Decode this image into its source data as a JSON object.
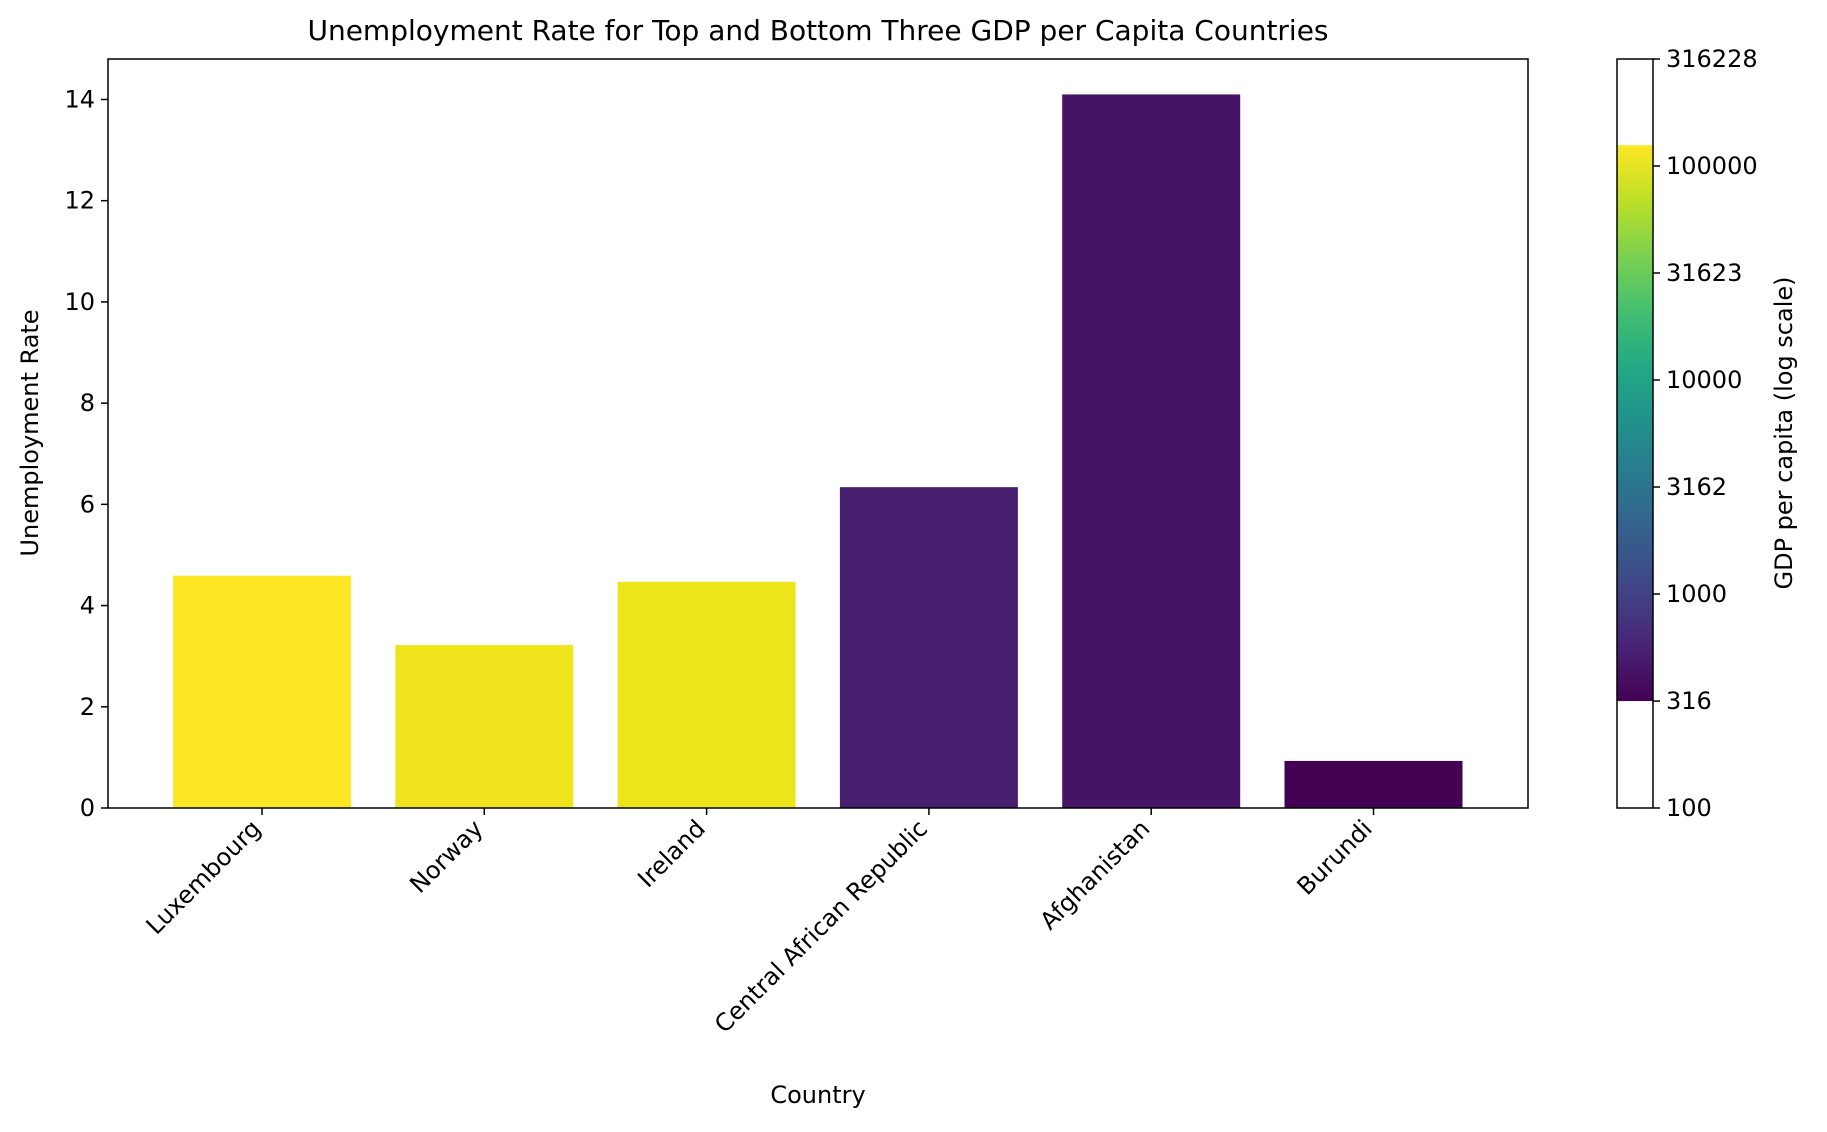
{
  "chart_data": {
    "type": "bar",
    "title": "Unemployment Rate for Top and Bottom Three GDP per Capita Countries",
    "xlabel": "Country",
    "ylabel": "Unemployment Rate",
    "ylim": [
      0,
      14.8
    ],
    "yticks": [
      0,
      2,
      4,
      6,
      8,
      10,
      12,
      14
    ],
    "categories": [
      "Luxembourg",
      "Norway",
      "Ireland",
      "Central African Republic",
      "Afghanistan",
      "Burundi"
    ],
    "values": [
      4.59,
      3.22,
      4.47,
      6.34,
      14.1,
      0.93
    ],
    "bar_colors": [
      "#fde725",
      "#f0e51c",
      "#ebe51a",
      "#481e6f",
      "#471364",
      "#440154"
    ],
    "colorbar": {
      "label": "GDP per capita (log scale)",
      "scale": "log",
      "range": [
        100,
        316228
      ],
      "color_range": [
        316,
        125000
      ],
      "ticks": [
        {
          "value": 100,
          "label": "100"
        },
        {
          "value": 316,
          "label": "316"
        },
        {
          "value": 1000,
          "label": "1000"
        },
        {
          "value": 3162,
          "label": "3162"
        },
        {
          "value": 10000,
          "label": "10000"
        },
        {
          "value": 31623,
          "label": "31623"
        },
        {
          "value": 100000,
          "label": "100000"
        },
        {
          "value": 316228,
          "label": "316228"
        }
      ],
      "colormap": "viridis"
    }
  }
}
